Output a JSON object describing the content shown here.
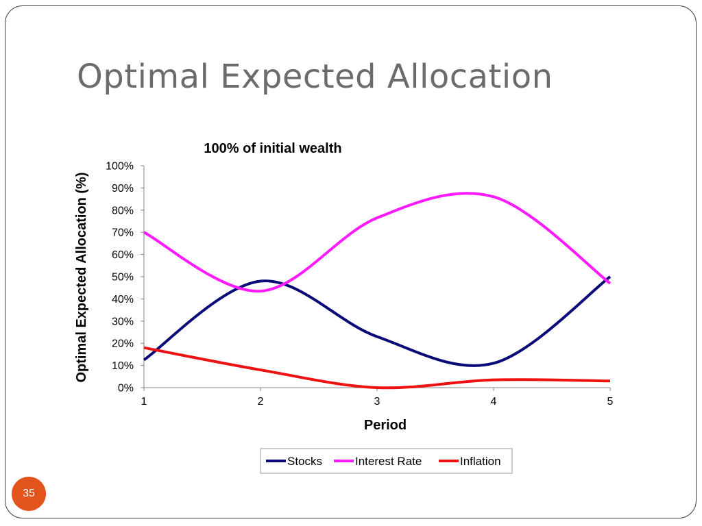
{
  "slide": {
    "title": "Optimal Expected Allocation",
    "page_number": "35"
  },
  "chart_data": {
    "type": "line",
    "title": "100% of initial wealth",
    "xlabel": "Period",
    "ylabel": "Optimal Expected Allocation (%)",
    "x": [
      1,
      2,
      3,
      4,
      5
    ],
    "ylim": [
      0,
      100
    ],
    "yticks": [
      "0%",
      "10%",
      "20%",
      "30%",
      "40%",
      "50%",
      "60%",
      "70%",
      "80%",
      "90%",
      "100%"
    ],
    "xticks": [
      "1",
      "2",
      "3",
      "4",
      "5"
    ],
    "grid": false,
    "legend_position": "bottom",
    "smooth": true,
    "series": [
      {
        "name": "Stocks",
        "color": "#0a0a78",
        "values": [
          12.5,
          48,
          23,
          11,
          50
        ]
      },
      {
        "name": "Interest Rate",
        "color": "#ff1aff",
        "values": [
          70,
          43.5,
          76.5,
          86,
          47
        ]
      },
      {
        "name": "Inflation",
        "color": "#ee1111",
        "values": [
          18,
          8,
          0,
          3.5,
          3
        ]
      }
    ]
  }
}
